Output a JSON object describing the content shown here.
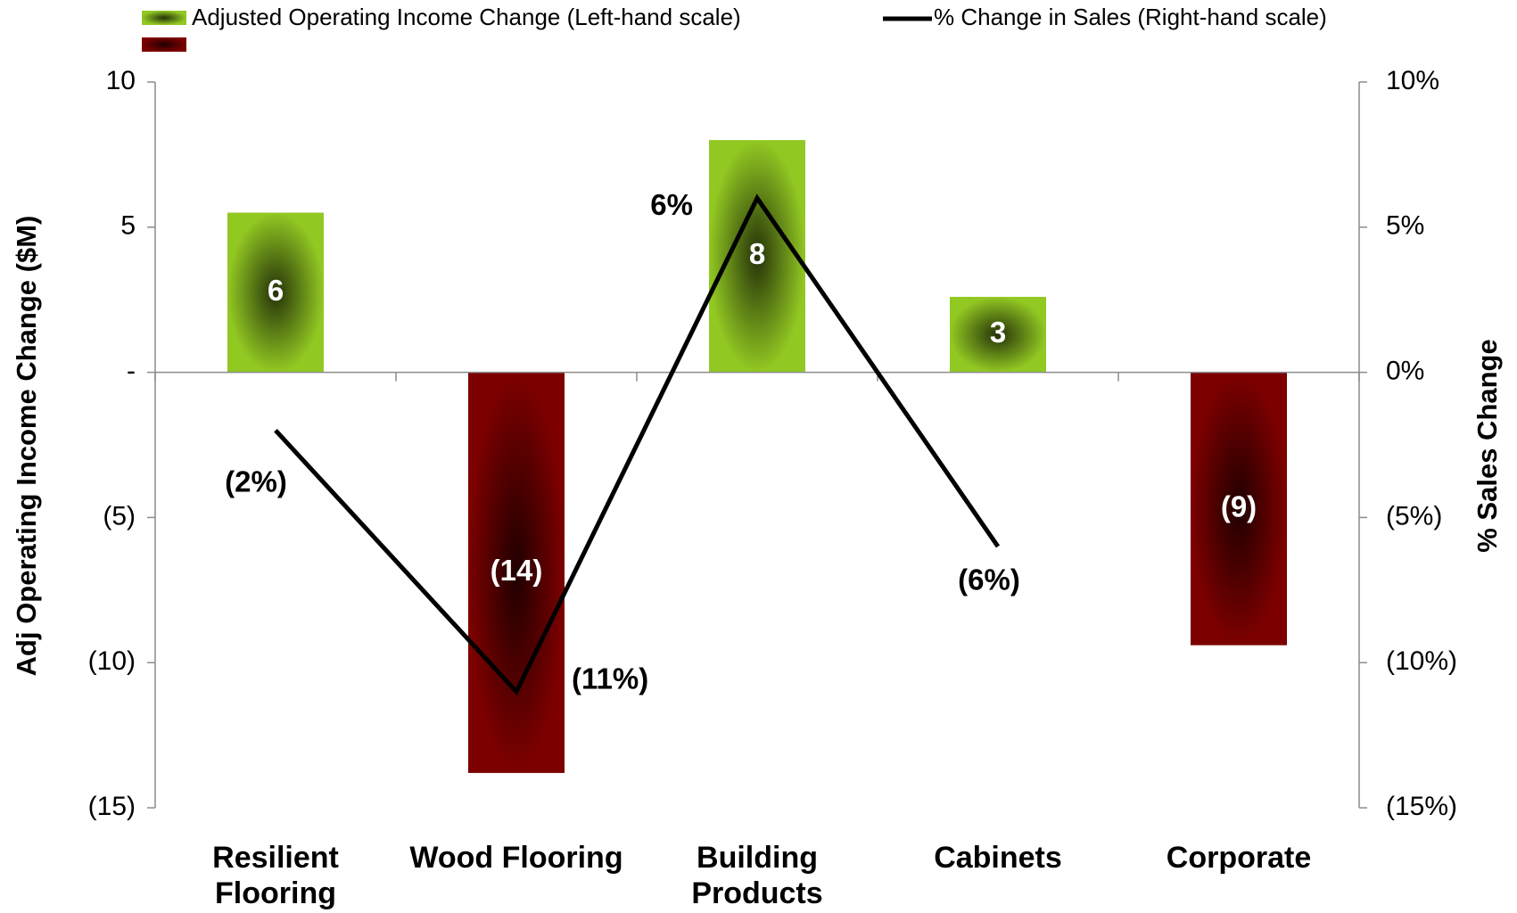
{
  "chart_data": {
    "type": "bar",
    "categories": [
      "Resilient Flooring",
      "Wood Flooring",
      "Building Products",
      "Cabinets",
      "Corporate"
    ],
    "series": [
      {
        "name": "Adjusted Operating Income Change (Left-hand scale)",
        "type": "bar",
        "color": "#92c822",
        "negative_color": "#7d0000",
        "values": [
          5.5,
          -13.8,
          8.0,
          2.6,
          -9.4
        ],
        "value_labels": [
          "6",
          "(14)",
          "8",
          "3",
          "(9)"
        ]
      },
      {
        "name": "% Change in Sales (Right-hand scale)",
        "type": "line",
        "axis": "y2",
        "color": "#000000",
        "values": [
          -2,
          -11,
          6,
          -6,
          null
        ],
        "value_labels": [
          "(2%)",
          "(11%)",
          "6%",
          "(6%)",
          null
        ]
      }
    ],
    "y_label": "Adj Operating Income Change ($M)",
    "y2_label": "% Sales Change",
    "ylim": [
      -15,
      10
    ],
    "yticks": [
      10,
      5,
      {
        "value": 0,
        "label": "-"
      },
      {
        "value": -5,
        "label": "(5)"
      },
      {
        "value": -10,
        "label": "(10)"
      },
      {
        "value": -15,
        "label": "(15)"
      }
    ],
    "y2lim": [
      -15,
      10
    ],
    "y2ticks": [
      {
        "value": 10,
        "label": "10%"
      },
      {
        "value": 5,
        "label": "5%"
      },
      {
        "value": 0,
        "label": "0%"
      },
      {
        "value": -5,
        "label": "(5%)"
      },
      {
        "value": -10,
        "label": "(10%)"
      },
      {
        "value": -15,
        "label": "(15%)"
      }
    ],
    "legend": "top"
  }
}
